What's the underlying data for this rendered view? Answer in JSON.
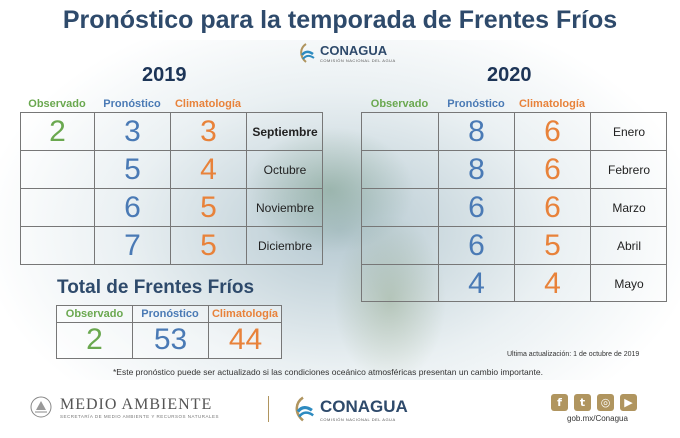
{
  "title": "Pronóstico para la temporada de Frentes Fríos",
  "brand": {
    "name": "CONAGUA",
    "subtitle": "COMISIÓN NACIONAL DEL AGUA"
  },
  "headers": {
    "observed": "Observado",
    "forecast": "Pronóstico",
    "climatology": "Climatología"
  },
  "table_2019": {
    "year": "2019",
    "rows": [
      {
        "observed": "2",
        "forecast": "3",
        "climatology": "3",
        "month": "Septiembre"
      },
      {
        "observed": "",
        "forecast": "5",
        "climatology": "4",
        "month": "Octubre"
      },
      {
        "observed": "",
        "forecast": "6",
        "climatology": "5",
        "month": "Noviembre"
      },
      {
        "observed": "",
        "forecast": "7",
        "climatology": "5",
        "month": "Diciembre"
      }
    ]
  },
  "table_2020": {
    "year": "2020",
    "rows": [
      {
        "observed": "",
        "forecast": "8",
        "climatology": "6",
        "month": "Enero"
      },
      {
        "observed": "",
        "forecast": "8",
        "climatology": "6",
        "month": "Febrero"
      },
      {
        "observed": "",
        "forecast": "6",
        "climatology": "6",
        "month": "Marzo"
      },
      {
        "observed": "",
        "forecast": "6",
        "climatology": "5",
        "month": "Abril"
      },
      {
        "observed": "",
        "forecast": "4",
        "climatology": "4",
        "month": "Mayo"
      }
    ]
  },
  "total": {
    "title": "Total de Frentes Fríos",
    "observed": "2",
    "forecast": "53",
    "climatology": "44"
  },
  "updated": "Ultima actualización: 1 de octubre de 2019",
  "note": "*Este pronóstico puede ser actualizado si las condiciones oceánico atmosféricas presentan un cambio importante.",
  "footer": {
    "ministry": "MEDIO AMBIENTE",
    "ministry_sub": "SECRETARÍA DE MEDIO AMBIENTE Y RECURSOS NATURALES",
    "website": "gob.mx/Conagua",
    "social_icons": [
      "facebook-icon",
      "twitter-icon",
      "instagram-icon",
      "youtube-icon"
    ]
  },
  "colors": {
    "observed": "#6aa84f",
    "forecast": "#4a7ab5",
    "climatology": "#e8823a",
    "title": "#2e4a6b",
    "footer_accent": "#b0955f"
  }
}
